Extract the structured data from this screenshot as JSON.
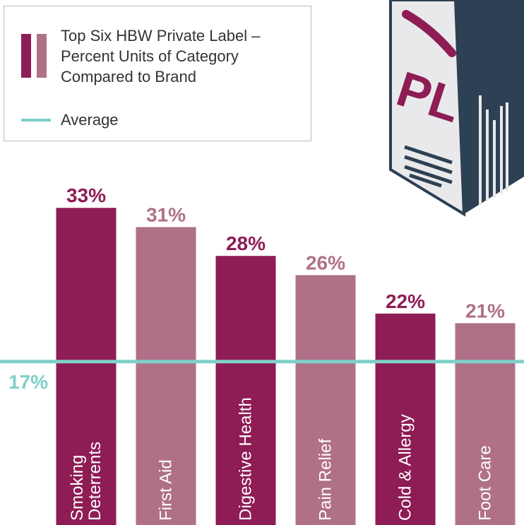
{
  "chart_data": {
    "type": "bar",
    "categories": [
      "Smoking\nDeterrents",
      "First Aid",
      "Digestive Health",
      "Pain Relief",
      "Cold & Allergy",
      "Foot Care"
    ],
    "series": [
      {
        "name": "Top Six HBW Private Label – Percent Units of Category Compared to Brand",
        "colors": [
          "#8e1c55",
          "#b07088",
          "#8e1c55",
          "#b07088",
          "#8e1c55",
          "#b07088"
        ],
        "values": [
          33,
          31,
          28,
          26,
          22,
          21
        ],
        "value_labels": [
          "33%",
          "31%",
          "28%",
          "26%",
          "22%",
          "21%"
        ]
      }
    ],
    "average": {
      "name": "Average",
      "value": 17,
      "value_label": "17%",
      "color": "#7fcfc9"
    },
    "ylim": [
      0,
      35
    ]
  }
}
